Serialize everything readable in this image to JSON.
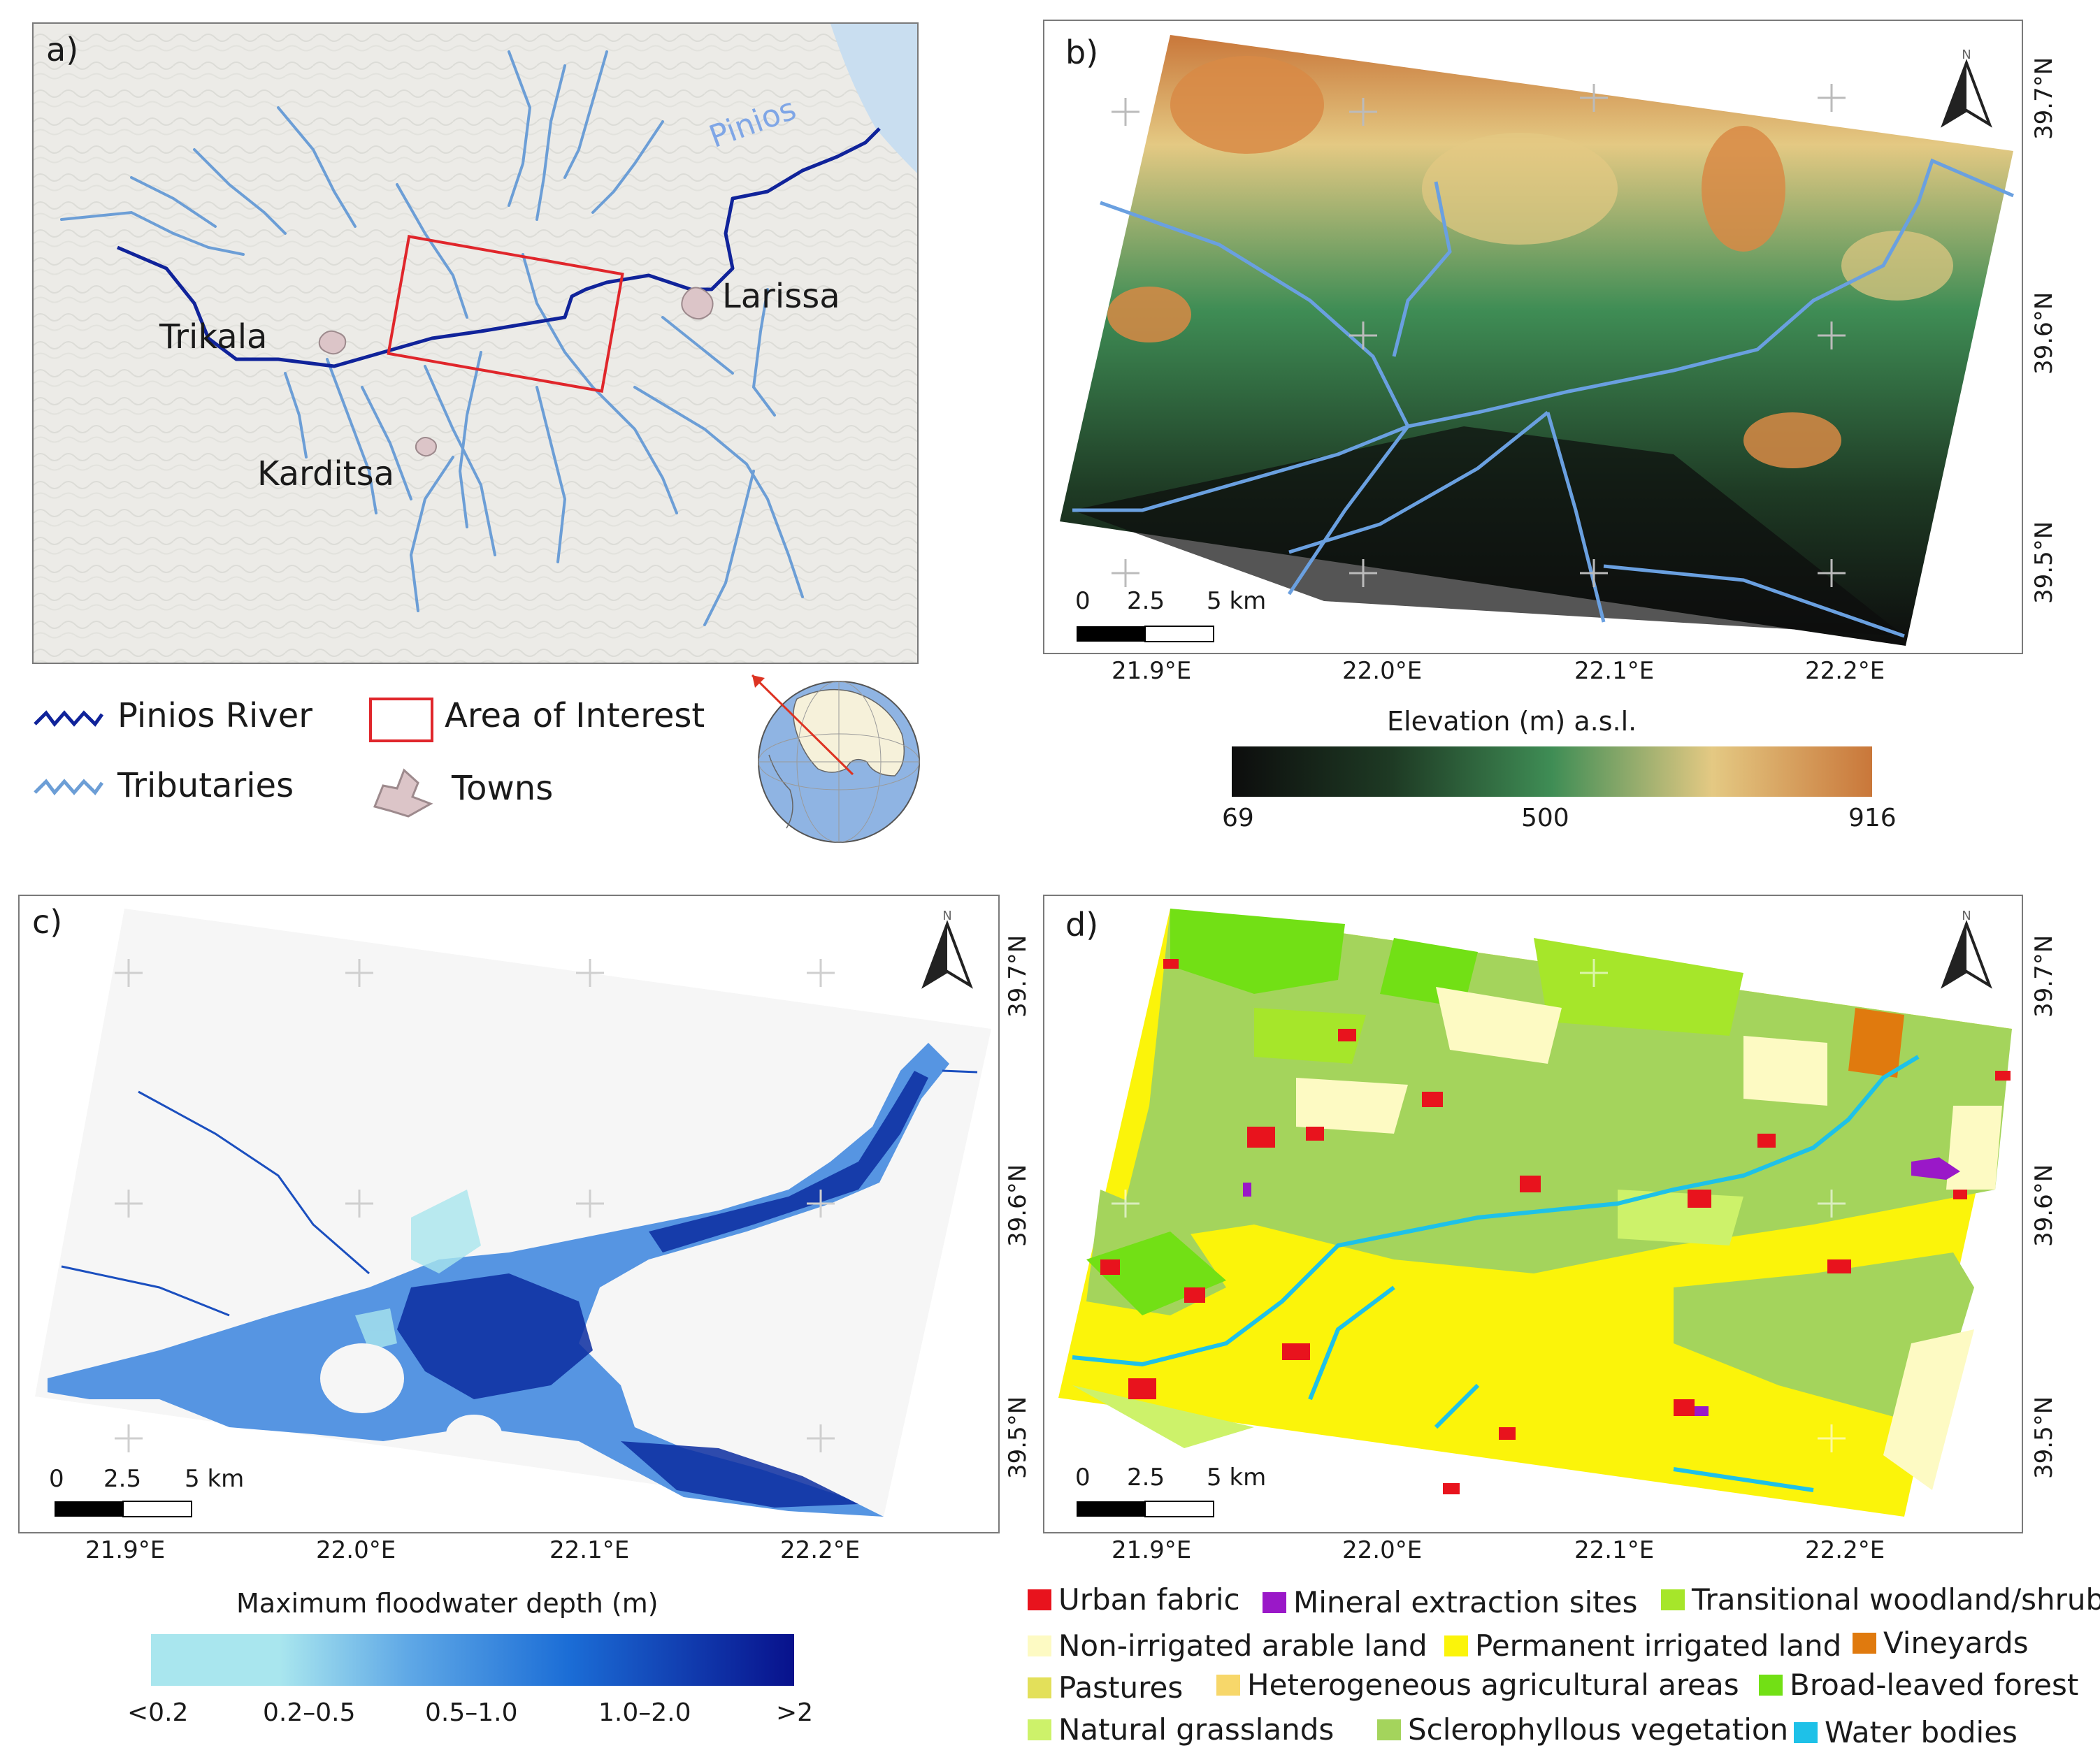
{
  "panels": {
    "a": {
      "label": "a)",
      "river_name": "Pinios",
      "towns": [
        "Trikala",
        "Larissa",
        "Karditsa"
      ],
      "legend": {
        "main_river": "Pinios River",
        "tributaries": "Tributaries",
        "aoi": "Area of Interest",
        "towns": "Towns"
      },
      "colors": {
        "main_river": "#10239a",
        "tributaries": "#6c9ed6",
        "aoi": "#e0262b",
        "towns": "#dcc5c8"
      }
    },
    "b": {
      "label": "b)",
      "colorbar": {
        "title": "Elevation (m) a.s.l.",
        "ticks": [
          "69",
          "500",
          "916"
        ],
        "colors": [
          "#0d0d0d",
          "#1e3a24",
          "#3f8d55",
          "#e4c983",
          "#c9773a"
        ]
      }
    },
    "c": {
      "label": "c)",
      "colorbar": {
        "title": "Maximum floodwater depth (m)",
        "ticks": [
          "<0.2",
          "0.2–0.5",
          "0.5–1.0",
          "1.0–2.0",
          ">2"
        ],
        "colors": [
          "#a9e6ee",
          "#5fa8e6",
          "#1b6dd6",
          "#08118c"
        ]
      }
    },
    "d": {
      "label": "d)",
      "legend": [
        {
          "label": "Urban fabric",
          "color": "#e8131d"
        },
        {
          "label": "Mineral extraction sites",
          "color": "#9a18c8"
        },
        {
          "label": "Transitional woodland/shrub",
          "color": "#a6e62a"
        },
        {
          "label": "Non-irrigated arable land",
          "color": "#fdfac3"
        },
        {
          "label": "Permanent irrigated land",
          "color": "#fbf40a"
        },
        {
          "label": "Vineyards",
          "color": "#e07a0e"
        },
        {
          "label": "Pastures",
          "color": "#e3e05a"
        },
        {
          "label": "Heterogeneous agricultural areas",
          "color": "#f7d76a"
        },
        {
          "label": "Broad-leaved forest",
          "color": "#72e015"
        },
        {
          "label": "Natural grasslands",
          "color": "#cdf26a"
        },
        {
          "label": "Sclerophyllous vegetation",
          "color": "#a4d45c"
        },
        {
          "label": "Water bodies",
          "color": "#1ec1e8"
        }
      ]
    }
  },
  "axes": {
    "lon_ticks": [
      "21.9°E",
      "22.0°E",
      "22.1°E",
      "22.2°E"
    ],
    "lat_ticks": [
      "39.7°N",
      "39.6°N",
      "39.5°N"
    ],
    "north": "N"
  },
  "scalebar": {
    "ticks": [
      "0",
      "2.5",
      "5 km"
    ]
  }
}
